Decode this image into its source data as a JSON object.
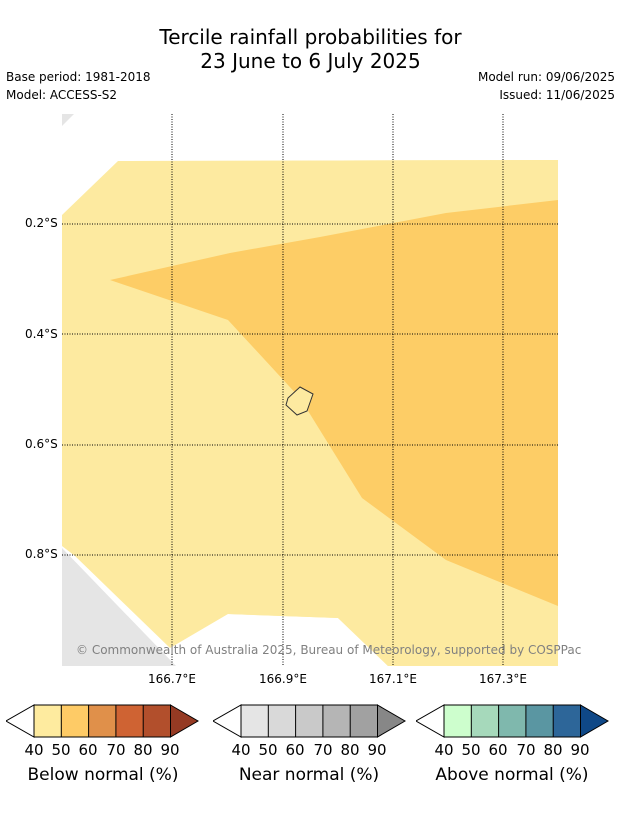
{
  "title_line1": "Tercile rainfall probabilities for",
  "title_line2": "23 June to 6 July 2025",
  "base_period": "Base period: 1981-2018",
  "model": "Model: ACCESS-S2",
  "model_run": "Model run: 09/06/2025",
  "issued": "Issued: 11/06/2025",
  "map": {
    "lat_labels": [
      "0.2°S",
      "0.4°S",
      "0.6°S",
      "0.8°S"
    ],
    "lon_labels": [
      "166.7°E",
      "166.9°E",
      "167.1°E",
      "167.3°E"
    ],
    "copyright": "© Commonwealth of Australia 2025, Bureau of Meteorology, supported by COSPPac",
    "region_colors": {
      "below_40_50": "#fdeaa0",
      "below_50_60": "#fdcd66",
      "no_data": "#e5e5e5"
    }
  },
  "colorbars": [
    {
      "label": "Below normal (%)",
      "ticks": [
        "40",
        "50",
        "60",
        "70",
        "80",
        "90"
      ],
      "colors": [
        "#ffffff",
        "#feeb9f",
        "#fecb66",
        "#e0904a",
        "#cf6333",
        "#b24f2c",
        "#953a23"
      ]
    },
    {
      "label": "Near normal (%)",
      "ticks": [
        "40",
        "50",
        "60",
        "70",
        "80",
        "90"
      ],
      "colors": [
        "#ffffff",
        "#e5e5e5",
        "#d9d9d9",
        "#c9c9c9",
        "#b5b5b5",
        "#a1a1a1",
        "#878787"
      ]
    },
    {
      "label": "Above normal (%)",
      "ticks": [
        "40",
        "50",
        "60",
        "70",
        "80",
        "90"
      ],
      "colors": [
        "#ffffff",
        "#cdfecd",
        "#a6d9bb",
        "#7fb8ad",
        "#5a96a2",
        "#2d6699",
        "#0f4887"
      ]
    }
  ]
}
